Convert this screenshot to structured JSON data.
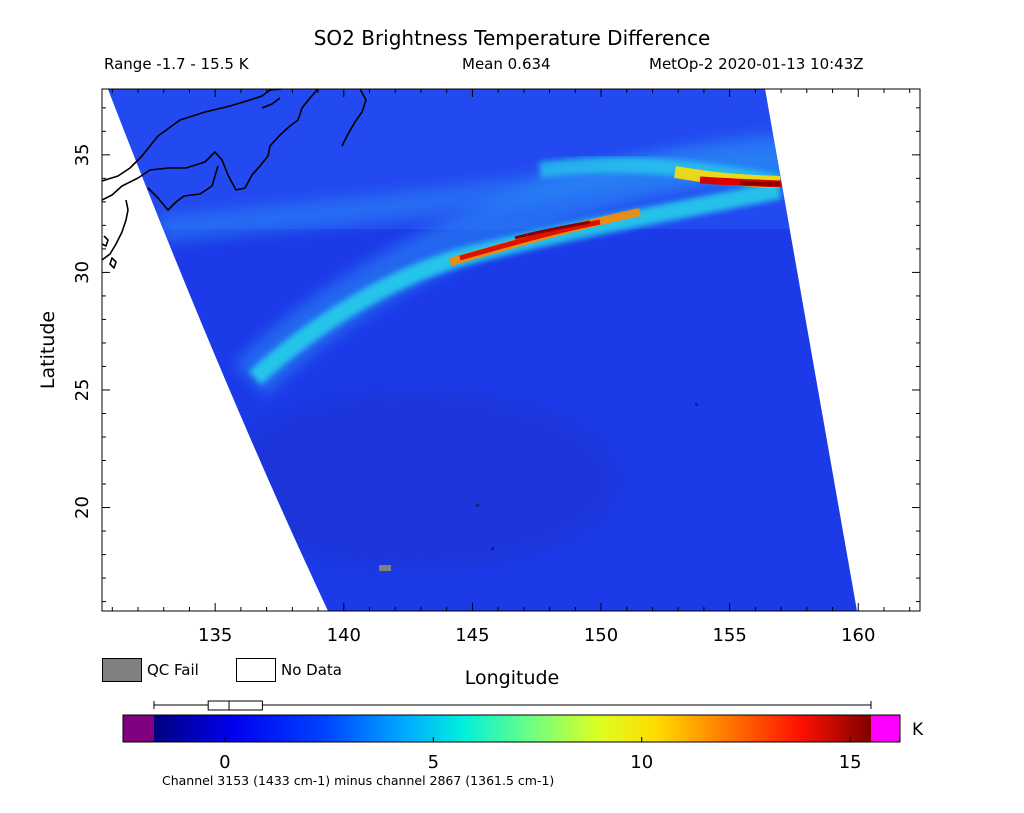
{
  "header": {
    "title": "SO2 Brightness Temperature Difference",
    "range": "Range -1.7 - 15.5 K",
    "mean": "Mean 0.634",
    "satellite_time": "MetOp-2 2020-01-13 10:43Z"
  },
  "map": {
    "xlabel": "Longitude",
    "ylabel": "Latitude",
    "lon_range": [
      130.6,
      162.4
    ],
    "lat_range": [
      15.6,
      37.8
    ],
    "x_ticks": [
      "135",
      "140",
      "145",
      "150",
      "155",
      "160"
    ],
    "x_tick_values": [
      135,
      140,
      145,
      150,
      155,
      160
    ],
    "y_ticks": [
      "20",
      "25",
      "30",
      "35"
    ],
    "y_tick_values": [
      20,
      25,
      30,
      35
    ],
    "background_color": "#1e3ef0",
    "plume_colors": [
      "#2090ff",
      "#33ccee",
      "#ffee00",
      "#ff6600",
      "#dd0000",
      "#990000"
    ]
  },
  "legend": {
    "qc_fail_label": "QC Fail",
    "no_data_label": "No Data",
    "qc_fail_color": "#808080",
    "no_data_color": "#ffffff"
  },
  "colorbar": {
    "unit": "K",
    "tick_labels": [
      "0",
      "5",
      "10",
      "15"
    ],
    "tick_values": [
      0,
      5,
      10,
      15
    ],
    "range": [
      -1.7,
      15.5
    ],
    "box_stats": [
      -1.7,
      -0.4,
      0.1,
      0.9,
      15.5
    ],
    "under_color": "#800080",
    "over_color": "#ff00ff",
    "footnote": "Channel 3153 (1433 cm-1) minus channel 2867 (1361.5 cm-1)"
  }
}
